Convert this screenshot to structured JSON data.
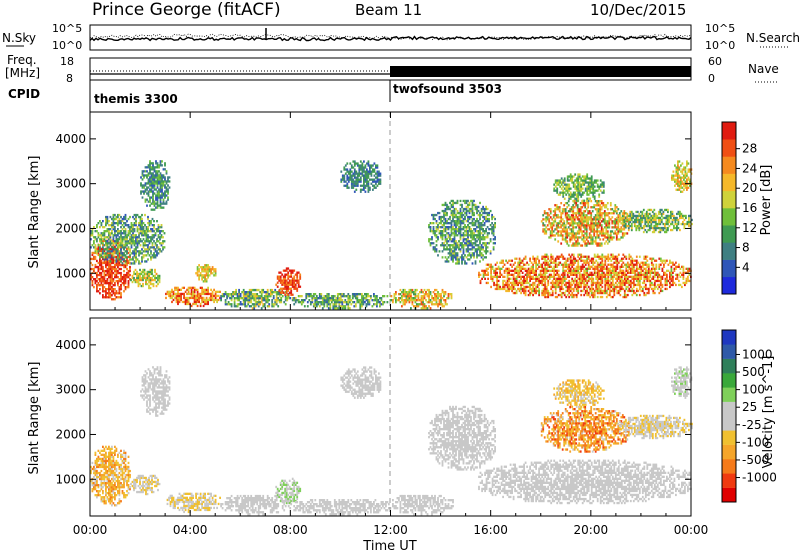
{
  "header": {
    "title": "Prince George (fitACF)",
    "beam": "Beam 11",
    "date": "10/Dec/2015"
  },
  "noise_panel": {
    "left_label": "N.Sky",
    "right_label": "N.Search",
    "left_ticks": [
      "10^5",
      "10^0"
    ],
    "right_ticks": [
      "10^5",
      "10^0"
    ]
  },
  "freq_panel": {
    "left_label_1": "Freq.",
    "left_label_2": "[MHz]",
    "left_ticks": [
      "18",
      "8"
    ],
    "right_label": "Nave",
    "right_ticks": [
      "60",
      "0"
    ]
  },
  "cpid": {
    "label": "CPID",
    "segments": [
      {
        "name": "themis 3300",
        "start_hour": 0
      },
      {
        "name": "twofsound 3503",
        "start_hour": 12
      }
    ]
  },
  "chart_data": [
    {
      "type": "heatmap",
      "title": "",
      "parameter": "Power",
      "ylabel": "Slant Range [km]",
      "xlabel": "",
      "x_ticks": [
        "00:00",
        "04:00",
        "08:00",
        "12:00",
        "16:00",
        "20:00",
        "00:00"
      ],
      "x_range_hours": [
        0,
        24
      ],
      "y_ticks": [
        1000,
        2000,
        3000,
        4000
      ],
      "ylim": [
        180,
        4600
      ],
      "colorbar": {
        "label": "Power [dB]",
        "ticks": [
          "4",
          "8",
          "12",
          "16",
          "20",
          "24",
          "28"
        ],
        "range": [
          0,
          30
        ],
        "colors": [
          "#1e2adc",
          "#2f56b8",
          "#3f7f82",
          "#3f9a52",
          "#6fbf3a",
          "#cfd23a",
          "#f5b82a",
          "#f58a1f",
          "#f04f14",
          "#e01b10"
        ]
      },
      "regions": [
        {
          "t": [
            0.0,
            1.6
          ],
          "r": [
            400,
            1750
          ],
          "v": [
            22,
            30
          ]
        },
        {
          "t": [
            1.6,
            2.8
          ],
          "r": [
            650,
            1100
          ],
          "v": [
            10,
            22
          ]
        },
        {
          "t": [
            0.0,
            3.0
          ],
          "r": [
            1200,
            2300
          ],
          "v": [
            4,
            18
          ]
        },
        {
          "t": [
            2.0,
            3.2
          ],
          "r": [
            2400,
            3500
          ],
          "v": [
            4,
            14
          ]
        },
        {
          "t": [
            3.0,
            5.2
          ],
          "r": [
            250,
            700
          ],
          "v": [
            16,
            30
          ]
        },
        {
          "t": [
            4.2,
            5.0
          ],
          "r": [
            800,
            1200
          ],
          "v": [
            12,
            24
          ]
        },
        {
          "t": [
            5.2,
            8.0
          ],
          "r": [
            200,
            650
          ],
          "v": [
            4,
            20
          ]
        },
        {
          "t": [
            7.4,
            8.4
          ],
          "r": [
            500,
            1100
          ],
          "v": [
            22,
            30
          ]
        },
        {
          "t": [
            8.0,
            12.0
          ],
          "r": [
            200,
            550
          ],
          "v": [
            4,
            18
          ]
        },
        {
          "t": [
            10.0,
            11.6
          ],
          "r": [
            2800,
            3500
          ],
          "v": [
            4,
            12
          ]
        },
        {
          "t": [
            12.0,
            14.5
          ],
          "r": [
            200,
            650
          ],
          "v": [
            10,
            26
          ]
        },
        {
          "t": [
            13.5,
            16.2
          ],
          "r": [
            1200,
            2600
          ],
          "v": [
            4,
            16
          ]
        },
        {
          "t": [
            15.5,
            24.0
          ],
          "r": [
            450,
            1400
          ],
          "v": [
            14,
            30
          ]
        },
        {
          "t": [
            18.0,
            21.5
          ],
          "r": [
            1600,
            2600
          ],
          "v": [
            10,
            28
          ]
        },
        {
          "t": [
            18.5,
            20.5
          ],
          "r": [
            2600,
            3200
          ],
          "v": [
            8,
            18
          ]
        },
        {
          "t": [
            21.0,
            24.0
          ],
          "r": [
            1900,
            2400
          ],
          "v": [
            6,
            20
          ]
        },
        {
          "t": [
            23.2,
            24.0
          ],
          "r": [
            2800,
            3500
          ],
          "v": [
            12,
            24
          ]
        }
      ]
    },
    {
      "type": "heatmap",
      "title": "",
      "parameter": "Velocity",
      "ylabel": "Slant Range [km]",
      "xlabel": "Time UT",
      "x_ticks": [
        "00:00",
        "04:00",
        "08:00",
        "12:00",
        "16:00",
        "20:00",
        "00:00"
      ],
      "x_range_hours": [
        0,
        24
      ],
      "y_ticks": [
        1000,
        2000,
        3000,
        4000
      ],
      "ylim": [
        180,
        4600
      ],
      "colorbar": {
        "label": "Velocity [m s^-1]",
        "ticks": [
          "1000",
          "500",
          "100",
          "25",
          "-25",
          "-100",
          "-500",
          "-1000"
        ],
        "range": [
          -1200,
          1200
        ],
        "colors": [
          "#e00000",
          "#f03a10",
          "#f57a1a",
          "#f5a52a",
          "#f0c030",
          "#c8c8c8",
          "#c8c8c8",
          "#7fd05a",
          "#3aa83a",
          "#2f7f5a",
          "#2f5aa8",
          "#1f38c0"
        ]
      },
      "regions": [
        {
          "t": [
            0.0,
            1.6
          ],
          "r": [
            400,
            1750
          ],
          "v": [
            -700,
            -100
          ]
        },
        {
          "t": [
            1.6,
            2.8
          ],
          "r": [
            650,
            1100
          ],
          "v": [
            -300,
            -40
          ]
        },
        {
          "t": [
            2.0,
            3.2
          ],
          "r": [
            2400,
            3500
          ],
          "v": [
            -150,
            30
          ]
        },
        {
          "t": [
            3.0,
            5.2
          ],
          "r": [
            250,
            700
          ],
          "v": [
            -300,
            -60
          ]
        },
        {
          "t": [
            5.2,
            8.0
          ],
          "r": [
            200,
            650
          ],
          "v": [
            -200,
            -30
          ]
        },
        {
          "t": [
            7.4,
            8.4
          ],
          "r": [
            450,
            1000
          ],
          "v": [
            60,
            300
          ]
        },
        {
          "t": [
            8.0,
            12.0
          ],
          "r": [
            200,
            550
          ],
          "v": [
            -150,
            -30
          ]
        },
        {
          "t": [
            10.0,
            11.6
          ],
          "r": [
            2800,
            3500
          ],
          "v": [
            -40,
            40
          ]
        },
        {
          "t": [
            12.0,
            14.5
          ],
          "r": [
            200,
            650
          ],
          "v": [
            -120,
            120
          ]
        },
        {
          "t": [
            13.5,
            16.2
          ],
          "r": [
            1200,
            2600
          ],
          "v": [
            -25,
            25
          ]
        },
        {
          "t": [
            15.5,
            24.0
          ],
          "r": [
            450,
            1400
          ],
          "v": [
            -200,
            60
          ]
        },
        {
          "t": [
            18.0,
            21.5
          ],
          "r": [
            1600,
            2600
          ],
          "v": [
            -900,
            -150
          ]
        },
        {
          "t": [
            18.5,
            20.5
          ],
          "r": [
            2600,
            3200
          ],
          "v": [
            -500,
            -100
          ]
        },
        {
          "t": [
            21.0,
            24.0
          ],
          "r": [
            1900,
            2400
          ],
          "v": [
            -300,
            -40
          ]
        },
        {
          "t": [
            23.2,
            24.0
          ],
          "r": [
            2800,
            3500
          ],
          "v": [
            -100,
            300
          ]
        }
      ]
    }
  ]
}
